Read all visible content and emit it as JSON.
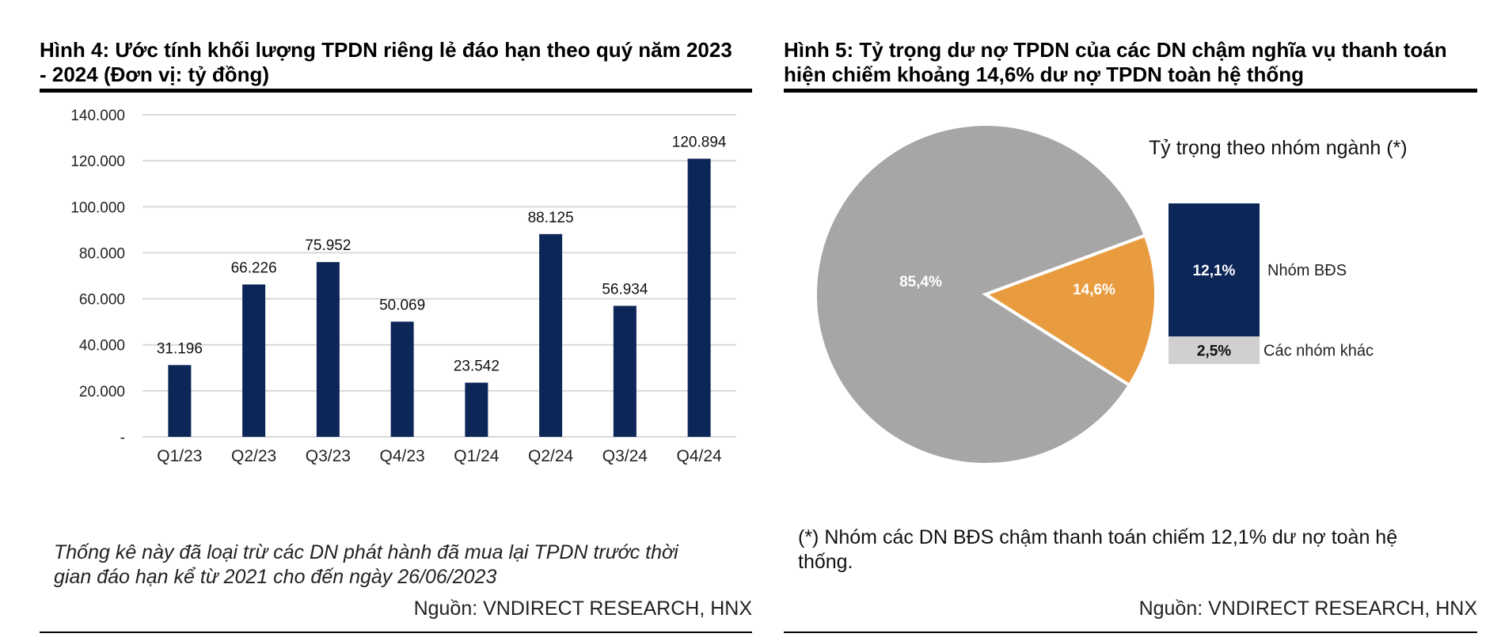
{
  "left": {
    "title_line1": "Hình 4: Ước tính khối lượng TPDN riêng lẻ đáo hạn theo quý năm 2023",
    "title_line2": "- 2024 (Đơn vị: tỷ đồng)",
    "note_line1": "Thống kê này đã loại trừ các DN phát hành đã mua lại TPDN trước thời",
    "note_line2": "gian đáo hạn kể từ 2021 cho đến ngày 26/06/2023",
    "source": "Nguồn: VNDIRECT RESEARCH, HNX"
  },
  "right": {
    "title_line1": "Hình 5: Tỷ trọng dư nợ TPDN của các DN chậm nghĩa vụ thanh toán",
    "title_line2": "hiện chiếm khoảng 14,6% dư nợ TPDN toàn hệ thống",
    "note_line1": "(*) Nhóm các DN BĐS chậm thanh toán chiếm 12,1% dư nợ toàn hệ",
    "note_line2": "thống.",
    "source": "Nguồn: VNDIRECT RESEARCH, HNX"
  },
  "chart_data": [
    {
      "type": "bar",
      "categories": [
        "Q1/23",
        "Q2/23",
        "Q3/23",
        "Q4/23",
        "Q1/24",
        "Q2/24",
        "Q3/24",
        "Q4/24"
      ],
      "values": [
        31196,
        66226,
        75952,
        50069,
        23542,
        88125,
        56934,
        120894
      ],
      "data_labels": [
        "31.196",
        "66.226",
        "75.952",
        "50.069",
        "23.542",
        "88.125",
        "56.934",
        "120.894"
      ],
      "yticks": [
        0,
        20000,
        40000,
        60000,
        80000,
        100000,
        120000,
        140000
      ],
      "ytick_labels": [
        "-",
        "20.000",
        "40.000",
        "60.000",
        "80.000",
        "100.000",
        "120.000",
        "140.000"
      ],
      "ylim": [
        0,
        140000
      ],
      "grid": true,
      "colors": {
        "bar": "#0d2658",
        "grid": "#d9d9d9"
      }
    },
    {
      "type": "pie",
      "slices": [
        {
          "label": "85,4%",
          "value": 85.4,
          "color": "#a6a6a6"
        },
        {
          "label": "14,6%",
          "value": 14.6,
          "color": "#e99c3f"
        }
      ],
      "breakdown": {
        "title": "Tỷ trọng theo nhóm ngành (*)",
        "segments": [
          {
            "label": "12,1%",
            "name": "Nhóm BĐS",
            "value": 12.1,
            "color": "#0d2658"
          },
          {
            "label": "2,5%",
            "name": "Các nhóm khác",
            "value": 2.5,
            "color": "#d0d0d0"
          }
        ]
      }
    }
  ]
}
